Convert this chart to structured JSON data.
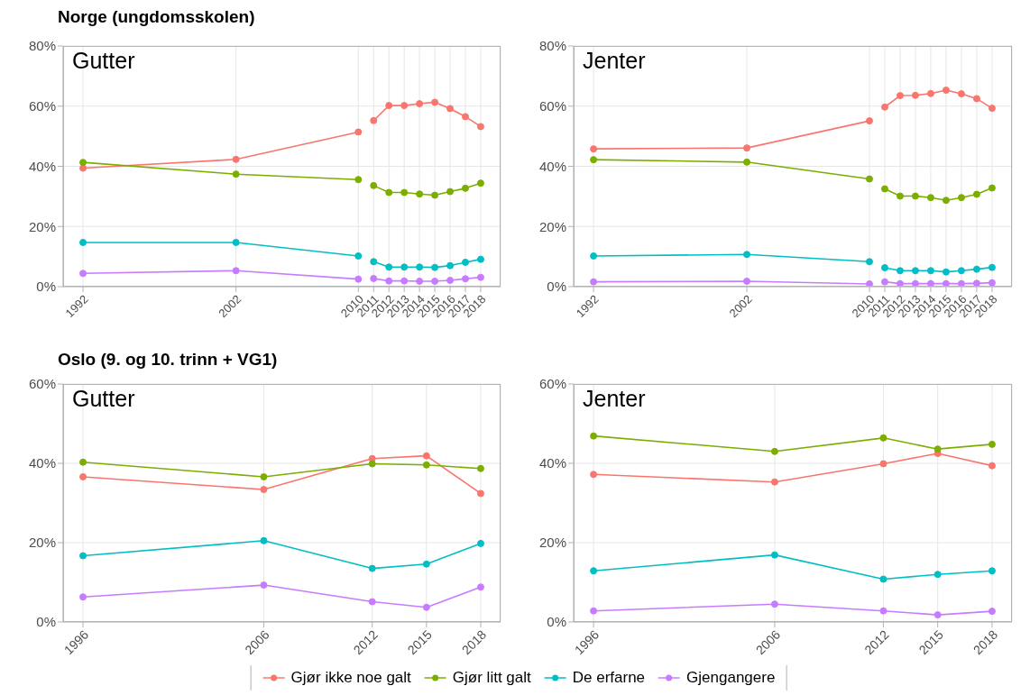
{
  "chart_data": [
    {
      "type": "line",
      "title": "Norge (ungdomsskolen)",
      "subtitle": "Gutter",
      "xlim": [
        1990.7,
        2019.3
      ],
      "xticks": [
        1992,
        2002,
        2010,
        2011,
        2012,
        2013,
        2014,
        2015,
        2016,
        2017,
        2018
      ],
      "ylim": [
        0,
        80
      ],
      "yticks": [
        {
          "value": 0,
          "label": "0%"
        },
        {
          "value": 20,
          "label": "20%"
        },
        {
          "value": 40,
          "label": "40%"
        },
        {
          "value": 60,
          "label": "60%"
        },
        {
          "value": 80,
          "label": "80%"
        }
      ],
      "grid": true,
      "marker": "circle",
      "series": [
        {
          "color": "#f8766d",
          "x": [
            1992,
            2002,
            2010
          ],
          "values": [
            39.4,
            42.3,
            51.4
          ]
        },
        {
          "color": "#f8766d",
          "x": [
            2011,
            2012,
            2013,
            2014,
            2015,
            2016,
            2017,
            2018
          ],
          "values": [
            55.2,
            60.2,
            60.2,
            60.8,
            61.3,
            59.2,
            56.5,
            53.2
          ]
        },
        {
          "color": "#7cae00",
          "x": [
            1992,
            2002,
            2010
          ],
          "values": [
            41.3,
            37.4,
            35.6
          ]
        },
        {
          "color": "#7cae00",
          "x": [
            2011,
            2012,
            2013,
            2014,
            2015,
            2016,
            2017,
            2018
          ],
          "values": [
            33.6,
            31.3,
            31.3,
            30.8,
            30.4,
            31.6,
            32.7,
            34.4
          ]
        },
        {
          "color": "#00bfc4",
          "x": [
            1992,
            2002,
            2010
          ],
          "values": [
            14.7,
            14.7,
            10.2
          ]
        },
        {
          "color": "#00bfc4",
          "x": [
            2011,
            2012,
            2013,
            2014,
            2015,
            2016,
            2017,
            2018
          ],
          "values": [
            8.3,
            6.5,
            6.5,
            6.5,
            6.4,
            7.0,
            8.1,
            9.1
          ]
        },
        {
          "color": "#c77cff",
          "x": [
            1992,
            2002,
            2010
          ],
          "values": [
            4.4,
            5.3,
            2.5
          ]
        },
        {
          "color": "#c77cff",
          "x": [
            2011,
            2012,
            2013,
            2014,
            2015,
            2016,
            2017,
            2018
          ],
          "values": [
            2.7,
            1.9,
            1.9,
            1.8,
            1.8,
            2.1,
            2.6,
            3.1
          ]
        }
      ]
    },
    {
      "type": "line",
      "subtitle": "Jenter",
      "xlim": [
        1990.7,
        2019.3
      ],
      "xticks": [
        1992,
        2002,
        2010,
        2011,
        2012,
        2013,
        2014,
        2015,
        2016,
        2017,
        2018
      ],
      "ylim": [
        0,
        80
      ],
      "yticks": [
        {
          "value": 0,
          "label": "0%"
        },
        {
          "value": 20,
          "label": "20%"
        },
        {
          "value": 40,
          "label": "40%"
        },
        {
          "value": 60,
          "label": "60%"
        },
        {
          "value": 80,
          "label": "80%"
        }
      ],
      "grid": true,
      "marker": "circle",
      "series": [
        {
          "color": "#f8766d",
          "x": [
            1992,
            2002,
            2010
          ],
          "values": [
            45.8,
            46.1,
            55.1
          ]
        },
        {
          "color": "#f8766d",
          "x": [
            2011,
            2012,
            2013,
            2014,
            2015,
            2016,
            2017,
            2018
          ],
          "values": [
            59.7,
            63.5,
            63.6,
            64.2,
            65.3,
            64.1,
            62.5,
            59.3
          ]
        },
        {
          "color": "#7cae00",
          "x": [
            1992,
            2002,
            2010
          ],
          "values": [
            42.2,
            41.4,
            35.8
          ]
        },
        {
          "color": "#7cae00",
          "x": [
            2011,
            2012,
            2013,
            2014,
            2015,
            2016,
            2017,
            2018
          ],
          "values": [
            32.5,
            30.1,
            30.1,
            29.6,
            28.7,
            29.6,
            30.7,
            32.8
          ]
        },
        {
          "color": "#00bfc4",
          "x": [
            1992,
            2002,
            2010
          ],
          "values": [
            10.2,
            10.7,
            8.3
          ]
        },
        {
          "color": "#00bfc4",
          "x": [
            2011,
            2012,
            2013,
            2014,
            2015,
            2016,
            2017,
            2018
          ],
          "values": [
            6.3,
            5.3,
            5.3,
            5.3,
            4.9,
            5.3,
            5.8,
            6.4
          ]
        },
        {
          "color": "#c77cff",
          "x": [
            1992,
            2002,
            2010
          ],
          "values": [
            1.6,
            1.8,
            0.9
          ]
        },
        {
          "color": "#c77cff",
          "x": [
            2011,
            2012,
            2013,
            2014,
            2015,
            2016,
            2017,
            2018
          ],
          "values": [
            1.6,
            1.0,
            1.0,
            1.0,
            1.0,
            1.0,
            1.1,
            1.3
          ]
        }
      ]
    },
    {
      "type": "line",
      "title": "Oslo (9. og 10. trinn + VG1)",
      "subtitle": "Gutter",
      "xlim": [
        1994.9,
        2019.1
      ],
      "xticks": [
        1996,
        2006,
        2012,
        2015,
        2018
      ],
      "ylim": [
        0,
        60
      ],
      "yticks": [
        {
          "value": 0,
          "label": "0%"
        },
        {
          "value": 20,
          "label": "20%"
        },
        {
          "value": 40,
          "label": "40%"
        },
        {
          "value": 60,
          "label": "60%"
        }
      ],
      "grid": true,
      "marker": "circle",
      "series": [
        {
          "color": "#f8766d",
          "x": [
            1996,
            2006,
            2012,
            2015,
            2018
          ],
          "values": [
            36.6,
            33.4,
            41.2,
            41.9,
            32.4
          ]
        },
        {
          "color": "#7cae00",
          "x": [
            1996,
            2006,
            2012,
            2015,
            2018
          ],
          "values": [
            40.3,
            36.6,
            39.9,
            39.6,
            38.7
          ]
        },
        {
          "color": "#00bfc4",
          "x": [
            1996,
            2006,
            2012,
            2015,
            2018
          ],
          "values": [
            16.7,
            20.5,
            13.5,
            14.6,
            19.8
          ]
        },
        {
          "color": "#c77cff",
          "x": [
            1996,
            2006,
            2012,
            2015,
            2018
          ],
          "values": [
            6.3,
            9.3,
            5.1,
            3.7,
            8.8
          ]
        }
      ]
    },
    {
      "type": "line",
      "subtitle": "Jenter",
      "xlim": [
        1994.9,
        2019.1
      ],
      "xticks": [
        1996,
        2006,
        2012,
        2015,
        2018
      ],
      "ylim": [
        0,
        60
      ],
      "yticks": [
        {
          "value": 0,
          "label": "0%"
        },
        {
          "value": 20,
          "label": "20%"
        },
        {
          "value": 40,
          "label": "40%"
        },
        {
          "value": 60,
          "label": "60%"
        }
      ],
      "grid": true,
      "marker": "circle",
      "legend": "bottom",
      "series": [
        {
          "name": "Gjør ikke noe galt",
          "color": "#f8766d",
          "x": [
            1996,
            2006,
            2012,
            2015,
            2018
          ],
          "values": [
            37.2,
            35.3,
            39.9,
            42.5,
            39.4
          ]
        },
        {
          "name": "Gjør litt galt",
          "color": "#7cae00",
          "x": [
            1996,
            2006,
            2012,
            2015,
            2018
          ],
          "values": [
            46.9,
            43.0,
            46.4,
            43.6,
            44.8
          ]
        },
        {
          "name": "De erfarne",
          "color": "#00bfc4",
          "x": [
            1996,
            2006,
            2012,
            2015,
            2018
          ],
          "values": [
            12.9,
            16.9,
            10.8,
            12.0,
            12.9
          ]
        },
        {
          "name": "Gjengangere",
          "color": "#c77cff",
          "x": [
            1996,
            2006,
            2012,
            2015,
            2018
          ],
          "values": [
            2.8,
            4.5,
            2.8,
            1.8,
            2.7
          ]
        }
      ]
    }
  ]
}
